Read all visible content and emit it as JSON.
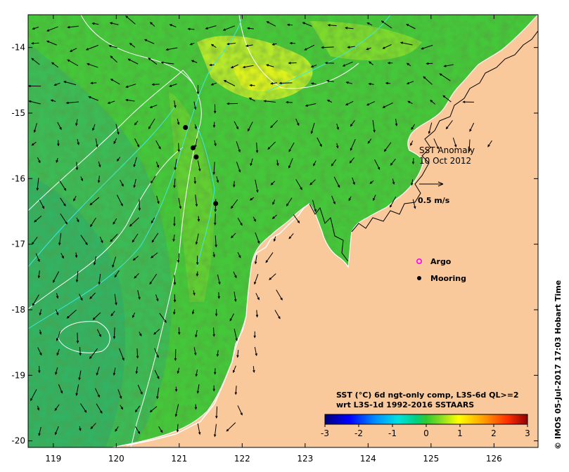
{
  "map": {
    "lon_ticks": [
      "119",
      "120",
      "121",
      "122",
      "123",
      "124",
      "125",
      "126"
    ],
    "lat_ticks": [
      "-14",
      "-15",
      "-16",
      "-17",
      "-18",
      "-19",
      "-20"
    ],
    "lon_range": [
      118.6,
      126.7
    ],
    "lat_range": [
      -20.1,
      -13.5
    ],
    "title_line1": "SST Anomaly",
    "title_line2": "10 Oct 2012",
    "scale_label": "0.5 m/s",
    "legend": {
      "argo": "Argo",
      "mooring": "Mooring",
      "argo_color": "#ff00ff",
      "mooring_color": "#000000"
    },
    "colorbar": {
      "caption_line1": "SST (°C) 6d ngt-only comp, L3S-6d QL>=2",
      "caption_line2": "wrt L3S-1d 1992-2016 SSTAARS",
      "ticks": [
        "-3",
        "-2",
        "-1",
        "0",
        "1",
        "2",
        "3"
      ],
      "range": [
        -3,
        3
      ]
    },
    "credit": "© IMOS 05-Jul-2017 17:03 Hobart Time",
    "moorings": [
      {
        "lon": 121.1,
        "lat": -15.22
      },
      {
        "lon": 121.22,
        "lat": -15.53
      },
      {
        "lon": 121.27,
        "lat": -15.67
      },
      {
        "lon": 121.58,
        "lat": -16.38
      }
    ],
    "land_color": "#f9c99b",
    "ocean_color": "#44c83a"
  }
}
